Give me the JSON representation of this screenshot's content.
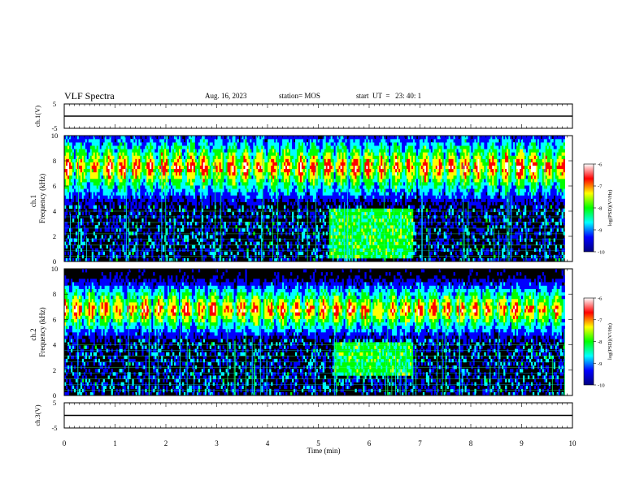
{
  "header": {
    "title": "VLF Spectra",
    "date": "Aug. 16, 2023",
    "station": "station= MOS",
    "start_ut": "start  UT  =   23: 40: 1"
  },
  "chart_data": [
    {
      "type": "line",
      "name": "ch1-waveform",
      "ylabel": "ch.1(V)",
      "ylim": [
        -5,
        5
      ],
      "yticks": [
        "5",
        "-5"
      ],
      "x": [
        0,
        10
      ],
      "y": [
        0,
        0
      ]
    },
    {
      "type": "heatmap",
      "name": "ch1-spectrogram",
      "ylabel_top": "ch.1",
      "ylabel": "Frequency (kHz)",
      "ylim": [
        0,
        10
      ],
      "yticks": [
        "0",
        "2",
        "4",
        "6",
        "8",
        "10"
      ],
      "xlim": [
        0,
        9.85
      ],
      "band_center_khz": 7.5,
      "interference_block": {
        "x": [
          5.2,
          6.85
        ],
        "y": [
          0.3,
          4.2
        ]
      },
      "colorbar": {
        "label": "log(PSD)(V²/Hz)",
        "ticks": [
          "-6",
          "-7",
          "-8",
          "-9",
          "-10"
        ],
        "range": [
          -10,
          -6
        ]
      }
    },
    {
      "type": "heatmap",
      "name": "ch2-spectrogram",
      "ylabel_top": "ch.2",
      "ylabel": "Frequency (kHz)",
      "ylim": [
        0,
        10
      ],
      "yticks": [
        "0",
        "2",
        "4",
        "6",
        "8",
        "10"
      ],
      "xlim": [
        0,
        9.85
      ],
      "band_center_khz": 6.8,
      "interference_block": {
        "x": [
          5.3,
          6.85
        ],
        "y": [
          1.5,
          4.2
        ]
      },
      "colorbar": {
        "label": "log(PSD)(V²/Hz)",
        "ticks": [
          "-6",
          "-7",
          "-8",
          "-9",
          "-10"
        ],
        "range": [
          -10,
          -6
        ]
      }
    },
    {
      "type": "line",
      "name": "ch3-waveform",
      "ylabel": "ch.3(V)",
      "ylim": [
        -5,
        5
      ],
      "yticks": [
        "5",
        "-5"
      ],
      "x": [
        0,
        10
      ],
      "y": [
        0,
        0
      ]
    }
  ],
  "xaxis": {
    "label": "Time (min)",
    "range": [
      0,
      10
    ],
    "ticks": [
      "0",
      "1",
      "2",
      "3",
      "4",
      "5",
      "6",
      "7",
      "8",
      "9",
      "10"
    ]
  },
  "colors": {
    "frame": "#000000",
    "background": "#000000",
    "colormap": [
      "#000080",
      "#0000ff",
      "#00ffff",
      "#00ff00",
      "#ffff00",
      "#ff0000",
      "#ffffff"
    ]
  }
}
